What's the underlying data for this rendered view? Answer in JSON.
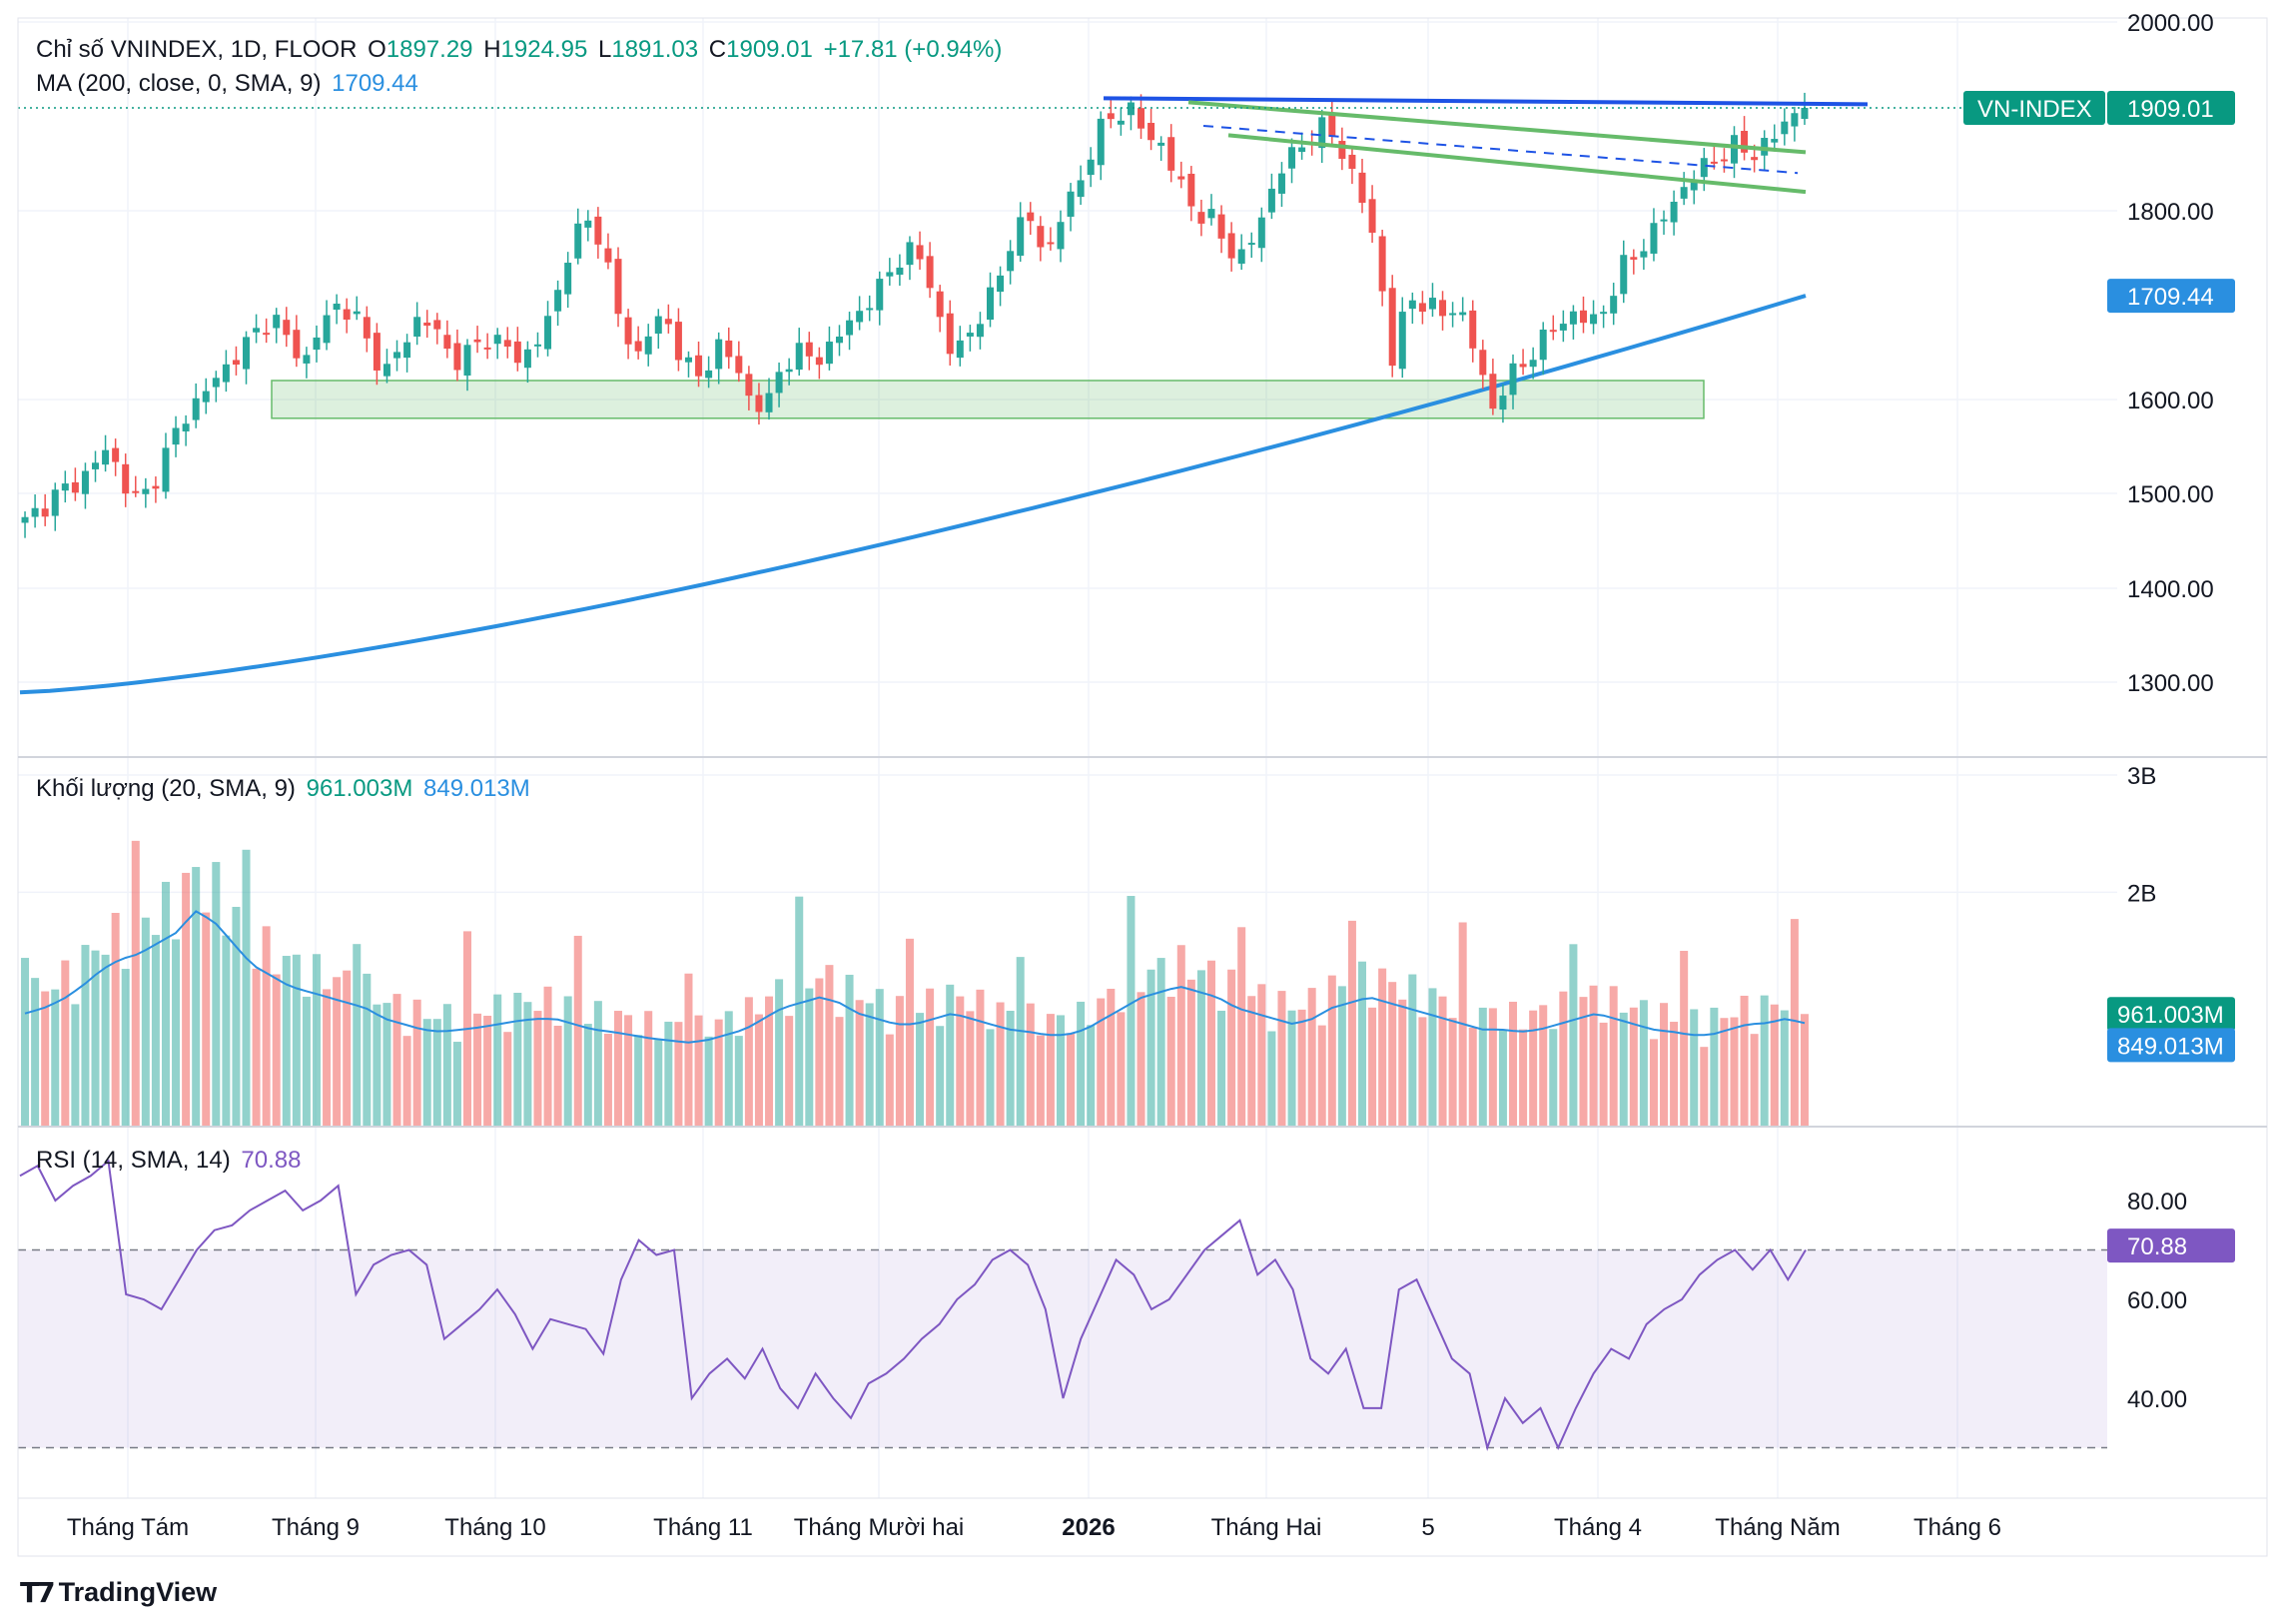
{
  "header": {
    "title": "Chỉ số VNINDEX, 1D, FLOOR",
    "open_label": "O",
    "open": "1897.29",
    "high_label": "H",
    "high": "1924.95",
    "low_label": "L",
    "low": "1891.03",
    "close_label": "C",
    "close": "1909.01",
    "change": "+17.81 (+0.94%)"
  },
  "ma_legend": {
    "label": "MA (200, close, 0, SMA, 9)",
    "value": "1709.44"
  },
  "volume_legend": {
    "label": "Khối lượng (20, SMA, 9)",
    "value": "961.003M",
    "sma_value": "849.013M"
  },
  "rsi_legend": {
    "label": "RSI (14, SMA, 14)",
    "value": "70.88"
  },
  "brand": "TradingView",
  "colors": {
    "up": "#26a69a",
    "down": "#ef5350",
    "ma": "#2a8fe0",
    "rsi": "#7e57c2",
    "resistance": "#1e53e5",
    "channel": "#66bb6a"
  },
  "chart_data": [
    {
      "type": "candlestick",
      "title": "Chỉ số VNINDEX, 1D, FLOOR",
      "y_ticks": [
        "2000.00",
        "1800.00",
        "1600.00",
        "1500.00",
        "1400.00",
        "1300.00"
      ],
      "ylim": [
        1230,
        2000
      ],
      "x_ticks": [
        "Tháng Tám",
        "Tháng 9",
        "Tháng 10",
        "Tháng 11",
        "Tháng Mười hai",
        "2026",
        "Tháng Hai",
        "5",
        "Tháng 4",
        "Tháng Năm",
        "Tháng 6"
      ],
      "close_path": [
        1470,
        1485,
        1500,
        1510,
        1525,
        1550,
        1510,
        1490,
        1520,
        1560,
        1590,
        1610,
        1630,
        1650,
        1670,
        1690,
        1660,
        1640,
        1680,
        1700,
        1690,
        1650,
        1630,
        1660,
        1690,
        1670,
        1640,
        1650,
        1665,
        1660,
        1640,
        1660,
        1690,
        1760,
        1790,
        1770,
        1690,
        1640,
        1680,
        1680,
        1640,
        1620,
        1660,
        1640,
        1600,
        1590,
        1640,
        1650,
        1640,
        1660,
        1680,
        1700,
        1720,
        1750,
        1760,
        1720,
        1650,
        1660,
        1690,
        1720,
        1780,
        1790,
        1750,
        1800,
        1830,
        1880,
        1900,
        1910,
        1880,
        1870,
        1830,
        1800,
        1790,
        1760,
        1750,
        1790,
        1840,
        1860,
        1880,
        1890,
        1860,
        1820,
        1760,
        1640,
        1710,
        1700,
        1690,
        1700,
        1650,
        1590,
        1620,
        1640,
        1660,
        1680,
        1690,
        1680,
        1700,
        1740,
        1760,
        1780,
        1810,
        1830,
        1850,
        1860,
        1870,
        1860,
        1875,
        1900,
        1909.01
      ],
      "last_price_label": "VN-INDEX",
      "last_price": "1909.01",
      "ma200": {
        "name": "MA (200, close, 0, SMA, 9)",
        "start": 1289,
        "end": 1709.44,
        "label": "1709.44"
      },
      "annotations": {
        "resistance": 1915,
        "support_zone": [
          1580,
          1620
        ],
        "channel_upper": [
          1915,
          1862
        ],
        "channel_lower": [
          1880,
          1820
        ],
        "dashed_midline": [
          1890,
          1840
        ]
      }
    },
    {
      "type": "bar",
      "title": "Khối lượng (20, SMA, 9)",
      "y_ticks": [
        "3B",
        "2B"
      ],
      "ylim": [
        0,
        3000
      ],
      "last_volume": "961.003M",
      "sma_label": "849.013M",
      "volume_profile": [
        1050,
        1100,
        1180,
        1300,
        1450,
        1550,
        1600,
        1700,
        1800,
        2000,
        1900,
        1700,
        1500,
        1400,
        1300,
        1250,
        1200,
        1150,
        1100,
        1000,
        950,
        900,
        880,
        900,
        920,
        950,
        980,
        1000,
        1000,
        950,
        900,
        880,
        850,
        820,
        800,
        780,
        800,
        850,
        900,
        1000,
        1100,
        1150,
        1200,
        1150,
        1050,
        1000,
        950,
        950,
        1000,
        1050,
        1000,
        950,
        900,
        880,
        850,
        850,
        900,
        1000,
        1100,
        1200,
        1250,
        1300,
        1250,
        1200,
        1100,
        1050,
        1000,
        950,
        1000,
        1100,
        1150,
        1200,
        1150,
        1100,
        1050,
        1000,
        950,
        900,
        900,
        880,
        900,
        950,
        1000,
        1050,
        1000,
        950,
        900,
        880,
        850,
        850,
        900,
        950,
        960,
        1000,
        961
      ]
    },
    {
      "type": "line",
      "title": "RSI (14, SMA, 14)",
      "y_ticks": [
        "80.00",
        "60.00",
        "40.00"
      ],
      "ylim": [
        20,
        90
      ],
      "bands": [
        30,
        70
      ],
      "last_value": "70.88",
      "values": [
        85,
        87,
        80,
        83,
        85,
        88,
        61,
        60,
        58,
        64,
        70,
        74,
        75,
        78,
        80,
        82,
        78,
        80,
        83,
        61,
        67,
        69,
        70,
        67,
        52,
        55,
        58,
        62,
        57,
        50,
        56,
        55,
        54,
        49,
        64,
        72,
        69,
        70,
        40,
        45,
        48,
        44,
        50,
        42,
        38,
        45,
        40,
        36,
        43,
        45,
        48,
        52,
        55,
        60,
        63,
        68,
        70,
        67,
        58,
        40,
        52,
        60,
        68,
        65,
        58,
        60,
        65,
        70,
        73,
        76,
        65,
        68,
        62,
        48,
        45,
        50,
        38,
        38,
        62,
        64,
        56,
        48,
        45,
        30,
        40,
        35,
        38,
        30,
        38,
        45,
        50,
        48,
        55,
        58,
        60,
        65,
        68,
        70,
        66,
        70,
        64,
        70
      ]
    }
  ]
}
